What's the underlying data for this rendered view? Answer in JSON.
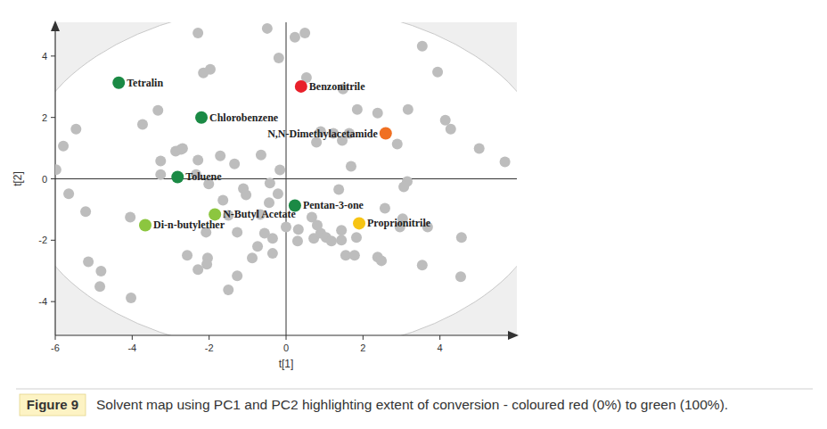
{
  "chart_data": {
    "type": "scatter",
    "figure_label": "Figure 9",
    "caption": "Solvent map using PC1 and PC2 highlighting extent of conversion - coloured red (0%) to green (100%).",
    "x_label": "t[1]",
    "y_label": "t[2]",
    "xlim": [
      -6,
      6
    ],
    "ylim": [
      -5.1,
      5.1
    ],
    "xticks": [
      -6,
      -4,
      -2,
      0,
      2,
      4
    ],
    "yticks": [
      -4,
      -2,
      0,
      2,
      4
    ],
    "grid": false,
    "series": [
      {
        "color": "#bdbdbd",
        "marker": "circle",
        "x": [
          -2.29,
          -0.49,
          0.23,
          0.49,
          -0.19,
          -1.97,
          -2.15,
          3.54,
          3.94,
          0.53,
          1.48,
          -3.73,
          -3.33,
          -5.46,
          -5.79,
          1.85,
          2.38,
          3.17,
          4.14,
          4.28,
          5.02,
          5.69,
          0.9,
          0.79,
          1.23,
          1.64,
          1.46,
          2.89,
          1.69,
          3.15,
          3.06,
          1.37,
          -2.73,
          -2.87,
          -2.69,
          -3.26,
          -2.29,
          -1.71,
          -3.26,
          -2.34,
          -1.34,
          -0.16,
          -0.65,
          -2.01,
          -1.64,
          -1.11,
          -1.04,
          -0.42,
          -0.21,
          -0.44,
          -0.67,
          -1.5,
          -5.65,
          -5.21,
          -4.05,
          -2.08,
          -1.27,
          -0.56,
          -0.35,
          0.0,
          0.32,
          0.3,
          0.72,
          0.67,
          0.81,
          0.9,
          1.04,
          1.18,
          1.44,
          1.44,
          1.83,
          2.57,
          3.03,
          2.96,
          3.68,
          4.56,
          -0.74,
          -0.88,
          -0.35,
          -2.57,
          -2.04,
          -2.06,
          -2.29,
          -1.27,
          -1.5,
          1.55,
          1.78,
          2.38,
          2.48,
          3.54,
          4.54,
          -5.14,
          -4.81,
          -4.84,
          -4.03,
          -5.98
        ],
        "values": [
          4.75,
          4.9,
          4.61,
          4.75,
          3.94,
          3.57,
          3.45,
          4.32,
          3.48,
          3.3,
          2.93,
          1.77,
          2.23,
          1.62,
          1.07,
          2.26,
          2.14,
          2.26,
          1.91,
          1.62,
          0.99,
          0.55,
          1.54,
          1.19,
          1.48,
          1.48,
          1.25,
          1.13,
          0.41,
          -0.09,
          -0.26,
          -0.35,
          0.96,
          0.9,
          0.99,
          0.58,
          0.61,
          0.75,
          0.14,
          0.14,
          0.49,
          0.29,
          0.78,
          -0.17,
          -0.7,
          -0.32,
          -0.52,
          -0.14,
          -0.49,
          -0.78,
          -1.16,
          -1.19,
          -0.49,
          -1.07,
          -1.25,
          -1.74,
          -1.74,
          -1.77,
          -1.94,
          -1.57,
          -1.65,
          -2.03,
          -1.94,
          -1.25,
          -1.51,
          -1.77,
          -1.91,
          -2.03,
          -1.68,
          -2.0,
          -1.91,
          -0.96,
          -1.3,
          -1.57,
          -1.57,
          -1.91,
          -2.2,
          -2.58,
          -2.43,
          -2.49,
          -2.58,
          -2.78,
          -2.96,
          -3.16,
          -3.62,
          -2.49,
          -2.49,
          -2.55,
          -2.67,
          -2.81,
          -3.19,
          -2.7,
          -3.01,
          -3.51,
          -3.88,
          0.3
        ]
      },
      {
        "marker": "circle",
        "labels": [
          "Tetralin",
          "Benzonitrile",
          "Chlorobenzene",
          "N,N-Dimethylacetamide",
          "Toluene",
          "Pentan-3-one",
          "N-Butyl Acetate",
          "Proprionitrile",
          "Di-n-butylether"
        ],
        "colors": [
          "#1b8a45",
          "#e8202a",
          "#1b8a45",
          "#f07022",
          "#1b8a45",
          "#1b8a45",
          "#8cc63f",
          "#f7c414",
          "#8cc63f"
        ],
        "x": [
          -4.35,
          0.39,
          -2.2,
          2.59,
          -2.82,
          0.23,
          -1.85,
          1.9,
          -3.66
        ],
        "values": [
          3.13,
          3.01,
          2.0,
          1.48,
          0.06,
          -0.87,
          -1.16,
          -1.45,
          -1.51
        ]
      }
    ]
  }
}
